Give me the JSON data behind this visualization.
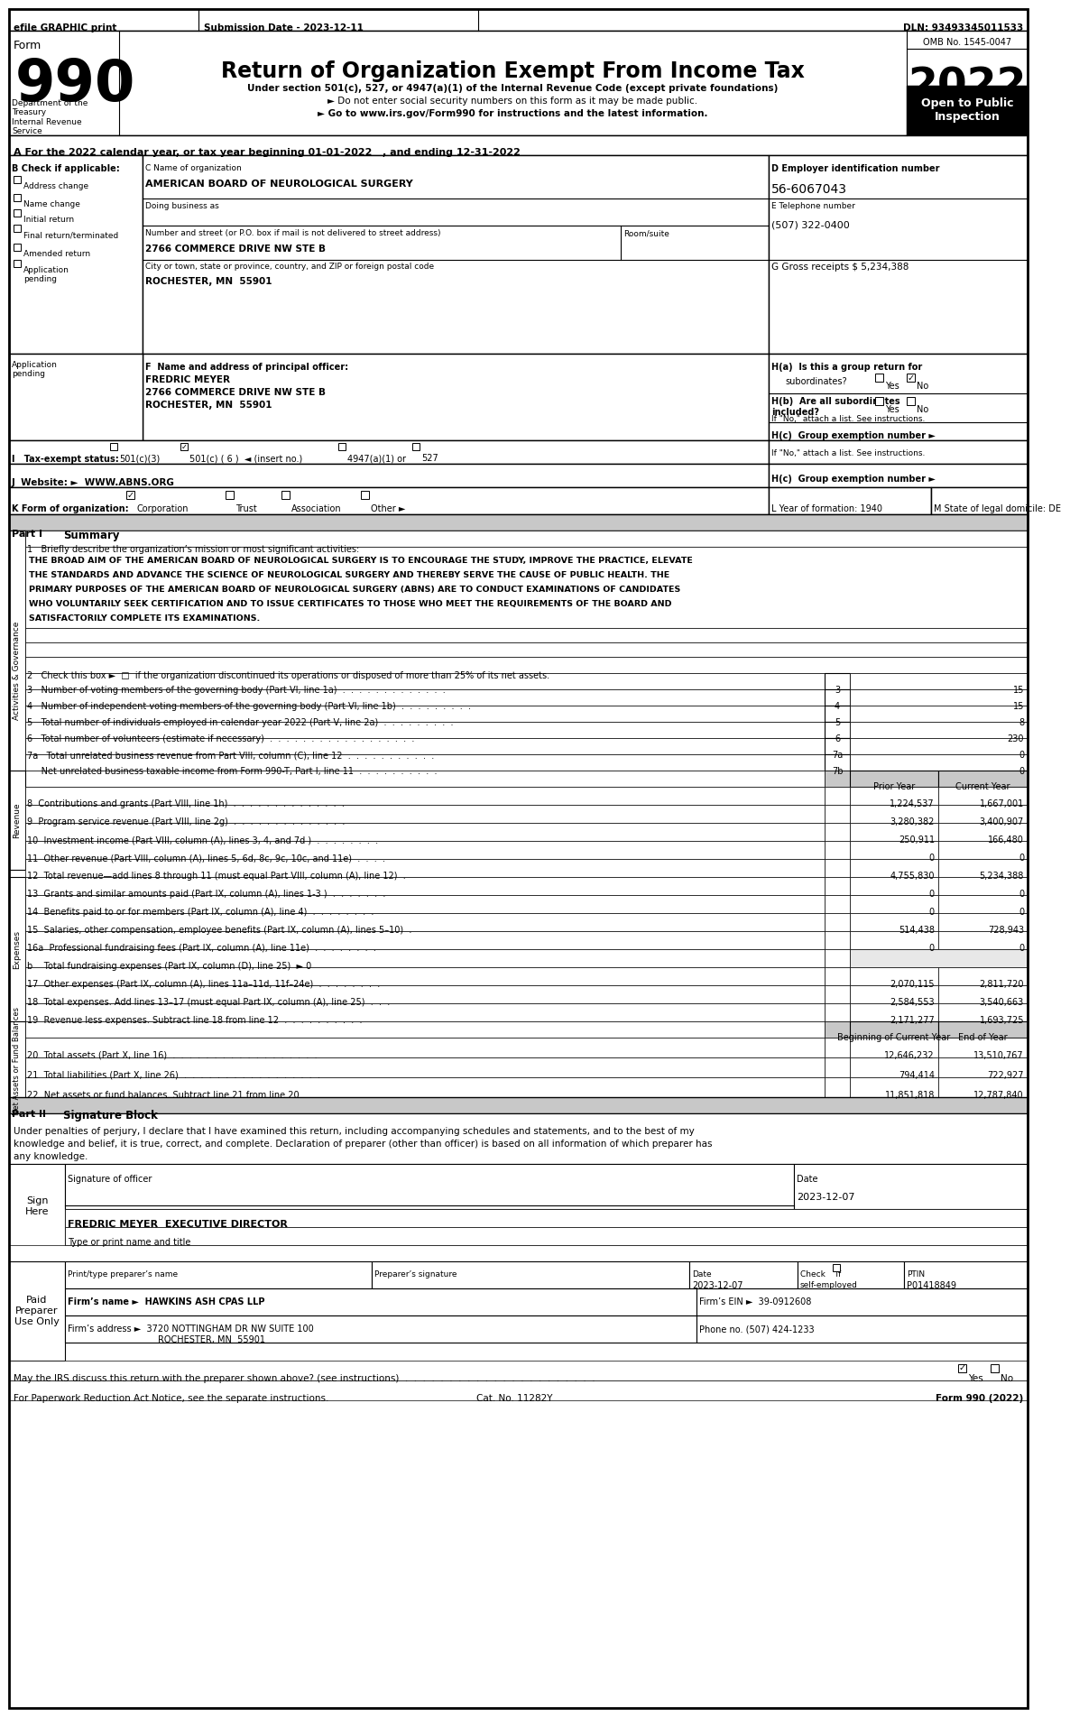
{
  "title": "Return of Organization Exempt From Income Tax",
  "subtitle1": "Under section 501(c), 527, or 4947(a)(1) of the Internal Revenue Code (except private foundations)",
  "subtitle2": "► Do not enter social security numbers on this form as it may be made public.",
  "subtitle3": "► Go to www.irs.gov/Form990 for instructions and the latest information.",
  "efile_text": "efile GRAPHIC print",
  "submission_date": "Submission Date - 2023-12-11",
  "dln": "DLN: 93493345011533",
  "form_number": "990",
  "form_label": "Form",
  "year": "2022",
  "omb": "OMB No. 1545-0047",
  "open_to_public": "Open to Public\nInspection",
  "dept_treasury": "Department of the\nTreasury\nInternal Revenue\nService",
  "tax_year_line": "A For the 2022 calendar year, or tax year beginning 01-01-2022   , and ending 12-31-2022",
  "b_label": "B Check if applicable:",
  "checkboxes_b": [
    "Address change",
    "Name change",
    "Initial return",
    "Final return/terminated",
    "Amended return",
    "Application\npending"
  ],
  "c_label": "C Name of organization",
  "org_name": "AMERICAN BOARD OF NEUROLOGICAL SURGERY",
  "dba_label": "Doing business as",
  "street_label": "Number and street (or P.O. box if mail is not delivered to street address)",
  "room_label": "Room/suite",
  "street_addr": "2766 COMMERCE DRIVE NW STE B",
  "city_label": "City or town, state or province, country, and ZIP or foreign postal code",
  "city_addr": "ROCHESTER, MN  55901",
  "d_label": "D Employer identification number",
  "ein": "56-6067043",
  "e_label": "E Telephone number",
  "phone": "(507) 322-0400",
  "g_label": "G Gross receipts $ 5,234,388",
  "f_label": "F  Name and address of principal officer:",
  "officer_name": "FREDRIC MEYER",
  "officer_addr1": "2766 COMMERCE DRIVE NW STE B",
  "officer_addr2": "ROCHESTER, MN  55901",
  "ha_label": "H(a)  Is this a group return for",
  "ha_text": "subordinates?",
  "hb_label": "H(b)  Are all subordinates\nincluded?",
  "hb_note": "If \"No,\" attach a list. See instructions.",
  "hc_label": "H(c)  Group exemption number ►",
  "i_label": "I   Tax-exempt status:",
  "i_501c3": "501(c)(3)",
  "i_501c6": "501(c) ( 6 )  ◄ (insert no.)",
  "i_4947": "4947(a)(1) or",
  "i_527": "527",
  "j_label": "J  Website: ►  WWW.ABNS.ORG",
  "k_label": "K Form of organization:",
  "k_options": [
    "Corporation",
    "Trust",
    "Association",
    "Other ►"
  ],
  "l_label": "L Year of formation: 1940",
  "m_label": "M State of legal domicile: DE",
  "part1_label": "Part I",
  "part1_title": "Summary",
  "line1_label": "1   Briefly describe the organization’s mission or most significant activities:",
  "mission_lines": [
    "THE BROAD AIM OF THE AMERICAN BOARD OF NEUROLOGICAL SURGERY IS TO ENCOURAGE THE STUDY, IMPROVE THE PRACTICE, ELEVATE",
    "THE STANDARDS AND ADVANCE THE SCIENCE OF NEUROLOGICAL SURGERY AND THEREBY SERVE THE CAUSE OF PUBLIC HEALTH. THE",
    "PRIMARY PURPOSES OF THE AMERICAN BOARD OF NEUROLOGICAL SURGERY (ABNS) ARE TO CONDUCT EXAMINATIONS OF CANDIDATES",
    "WHO VOLUNTARILY SEEK CERTIFICATION AND TO ISSUE CERTIFICATES TO THOSE WHO MEET THE REQUIREMENTS OF THE BOARD AND",
    "SATISFACTORILY COMPLETE ITS EXAMINATIONS."
  ],
  "line2_text": "2   Check this box ►  □  if the organization discontinued its operations or disposed of more than 25% of its net assets.",
  "line3_text": "3   Number of voting members of the governing body (Part VI, line 1a)  .  .  .  .  .  .  .  .  .  .  .  .  .",
  "line3_num": "3",
  "line3_val": "15",
  "line4_text": "4   Number of independent voting members of the governing body (Part VI, line 1b)  .  .  .  .  .  .  .  .  .",
  "line4_num": "4",
  "line4_val": "15",
  "line5_text": "5   Total number of individuals employed in calendar year 2022 (Part V, line 2a)  .  .  .  .  .  .  .  .  .",
  "line5_num": "5",
  "line5_val": "8",
  "line6_text": "6   Total number of volunteers (estimate if necessary)  .  .  .  .  .  .  .  .  .  .  .  .  .  .  .  .  .  .",
  "line6_num": "6",
  "line6_val": "230",
  "line7a_text": "7a   Total unrelated business revenue from Part VIII, column (C), line 12  .  .  .  .  .  .  .  .  .  .  .",
  "line7a_num": "7a",
  "line7a_val": "0",
  "line7b_text": "     Net unrelated business taxable income from Form 990-T, Part I, line 11  .  .  .  .  .  .  .  .  .  .",
  "line7b_num": "7b",
  "line7b_val": "0",
  "prior_year_col": "Prior Year",
  "current_year_col": "Current Year",
  "revenue_lines": [
    {
      "num": "8",
      "text": "Contributions and grants (Part VIII, line 1h)  .  .  .  .  .  .  .  .  .  .  .  .  .  .",
      "prior": "1,224,537",
      "current": "1,667,001"
    },
    {
      "num": "9",
      "text": "Program service revenue (Part VIII, line 2g)  .  .  .  .  .  .  .  .  .  .  .  .  .  .",
      "prior": "3,280,382",
      "current": "3,400,907"
    },
    {
      "num": "10",
      "text": "Investment income (Part VIII, column (A), lines 3, 4, and 7d )  .  .  .  .  .  .  .  .",
      "prior": "250,911",
      "current": "166,480"
    },
    {
      "num": "11",
      "text": "Other revenue (Part VIII, column (A), lines 5, 6d, 8c, 9c, 10c, and 11e)  .  .  .  .",
      "prior": "0",
      "current": "0"
    },
    {
      "num": "12",
      "text": "Total revenue—add lines 8 through 11 (must equal Part VIII, column (A), line 12)  .",
      "prior": "4,755,830",
      "current": "5,234,388"
    }
  ],
  "expense_lines": [
    {
      "num": "13",
      "text": "Grants and similar amounts paid (Part IX, column (A), lines 1-3 )  .  .  .  .  .  .  .",
      "prior": "0",
      "current": "0"
    },
    {
      "num": "14",
      "text": "Benefits paid to or for members (Part IX, column (A), line 4)  .  .  .  .  .  .  .  .",
      "prior": "0",
      "current": "0"
    },
    {
      "num": "15",
      "text": "Salaries, other compensation, employee benefits (Part IX, column (A), lines 5–10)  .",
      "prior": "514,438",
      "current": "728,943"
    },
    {
      "num": "16a",
      "text": "Professional fundraising fees (Part IX, column (A), line 11e)  .  .  .  .  .  .  .  .",
      "prior": "0",
      "current": "0"
    },
    {
      "num": "b",
      "text": "  Total fundraising expenses (Part IX, column (D), line 25)  ► 0",
      "prior": "",
      "current": ""
    },
    {
      "num": "17",
      "text": "Other expenses (Part IX, column (A), lines 11a–11d, 11f–24e)  .  .  .  .  .  .  .  .",
      "prior": "2,070,115",
      "current": "2,811,720"
    },
    {
      "num": "18",
      "text": "Total expenses. Add lines 13–17 (must equal Part IX, column (A), line 25)  .  .  .",
      "prior": "2,584,553",
      "current": "3,540,663"
    },
    {
      "num": "19",
      "text": "Revenue less expenses. Subtract line 18 from line 12  .  .  .  .  .  .  .  .  .  .",
      "prior": "2,171,277",
      "current": "1,693,725"
    }
  ],
  "netassets_boc": "Beginning of Current Year",
  "netassets_eoy": "End of Year",
  "netasset_lines": [
    {
      "num": "20",
      "text": "Total assets (Part X, line 16)  .  .  .  .  .  .  .  .  .  .  .  .  .  .  .  .  .  .",
      "boc": "12,646,232",
      "eoy": "13,510,767"
    },
    {
      "num": "21",
      "text": "Total liabilities (Part X, line 26)  .  .  .  .  .  .  .  .  .  .  .  .  .  .  .  .  .",
      "boc": "794,414",
      "eoy": "722,927"
    },
    {
      "num": "22",
      "text": "Net assets or fund balances. Subtract line 21 from line 20  .  .  .  .  .  .  .  .  .",
      "boc": "11,851,818",
      "eoy": "12,787,840"
    }
  ],
  "part2_label": "Part II",
  "part2_title": "Signature Block",
  "sig_text1": "Under penalties of perjury, I declare that I have examined this return, including accompanying schedules and statements, and to the best of my",
  "sig_text2": "knowledge and belief, it is true, correct, and complete. Declaration of preparer (other than officer) is based on all information of which preparer has",
  "sig_text3": "any knowledge.",
  "sign_here": "Sign\nHere",
  "sig_date": "2023-12-07",
  "sig_officer_label": "Signature of officer",
  "sig_officer_name": "FREDRIC MEYER  EXECUTIVE DIRECTOR",
  "sig_officer_type": "Type or print name and title",
  "paid_preparer": "Paid\nPreparer\nUse Only",
  "preparer_name_label": "Print/type preparer’s name",
  "preparer_sig_label": "Preparer’s signature",
  "preparer_date_label": "Date",
  "preparer_check_label": "Check     if\nself-employed",
  "preparer_ptin_label": "PTIN",
  "preparer_date": "2023-12-07",
  "preparer_ptin": "P01418849",
  "firm_name_label": "Firm’s name",
  "firm_name": "HAWKINS ASH CPAS LLP",
  "firm_ein_label": "Firm’s EIN ►",
  "firm_ein": "39-0912608",
  "firm_addr_label": "Firm’s address",
  "firm_addr": "3720 NOTTINGHAM DR NW SUITE 100",
  "firm_city": "ROCHESTER, MN  55901",
  "phone_label": "Phone no. (507) 424-1233",
  "irs_discuss_label": "May the IRS discuss this return with the preparer shown above? (see instructions)  .  .  .  .  .  .  .  .  .  .  .  .  .  .  .  .  .  .  .  .  .  .",
  "form_990_footer": "Form 990 (2022)",
  "paperwork_label": "For Paperwork Reduction Act Notice, see the separate instructions.",
  "cat_no": "Cat. No. 11282Y",
  "sidebar_gov": "Activities & Governance",
  "sidebar_rev": "Revenue",
  "sidebar_exp": "Expenses",
  "sidebar_net": "Net Assets or Fund Balances"
}
